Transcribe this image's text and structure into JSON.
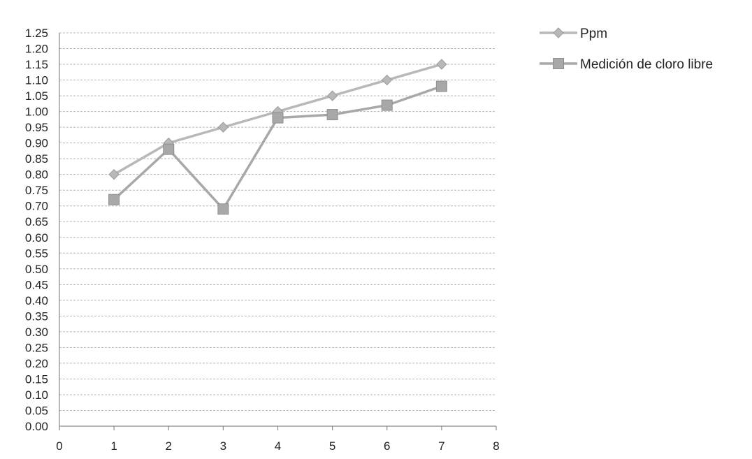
{
  "chart_data": {
    "type": "line",
    "title": "",
    "xlabel": "",
    "ylabel": "",
    "xlim": [
      0,
      8
    ],
    "ylim": [
      0,
      1.25
    ],
    "x_ticks": [
      0,
      1,
      2,
      3,
      4,
      5,
      6,
      7,
      8
    ],
    "y_ticks": [
      "0.00",
      "0.05",
      "0.10",
      "0.15",
      "0.20",
      "0.25",
      "0.30",
      "0.35",
      "0.40",
      "0.45",
      "0.50",
      "0.55",
      "0.60",
      "0.65",
      "0.70",
      "0.75",
      "0.80",
      "0.85",
      "0.90",
      "0.95",
      "1.00",
      "1.05",
      "1.10",
      "1.15",
      "1.20",
      "1.25"
    ],
    "grid": true,
    "legend_position": "right",
    "series": [
      {
        "name": "Ppm",
        "marker": "diamond",
        "color": "#b8b8b8",
        "x": [
          1,
          2,
          3,
          4,
          5,
          6,
          7
        ],
        "y": [
          0.8,
          0.9,
          0.95,
          1.0,
          1.05,
          1.1,
          1.15
        ]
      },
      {
        "name": "Medición de cloro libre",
        "marker": "square",
        "color": "#a8a8a8",
        "x": [
          1,
          2,
          3,
          4,
          5,
          6,
          7
        ],
        "y": [
          0.72,
          0.88,
          0.69,
          0.98,
          0.99,
          1.02,
          1.08
        ]
      }
    ]
  }
}
